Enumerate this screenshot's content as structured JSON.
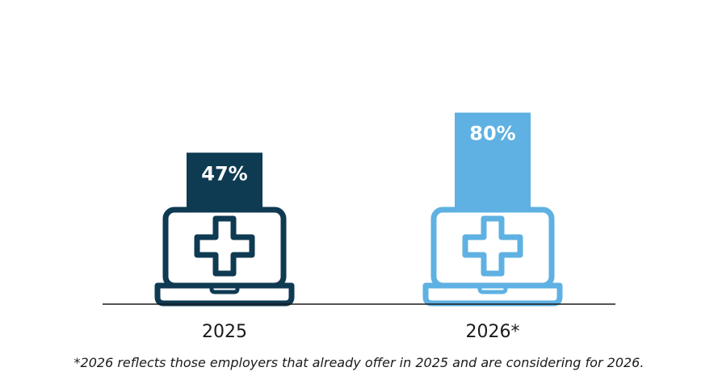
{
  "chart_data": {
    "type": "bar",
    "categories": [
      "2025",
      "2026*"
    ],
    "values": [
      47,
      80
    ],
    "value_labels": [
      "47%",
      "80%"
    ],
    "unit": "%",
    "ylim": [
      0,
      100
    ],
    "grid": false,
    "legend": "none",
    "icon": "laptop-medical-cross-icon"
  },
  "colors": {
    "bar_2025": "#0e3a52",
    "bar_2026": "#5eb1e2",
    "axis": "#1a1a1a",
    "label_text": "#ffffff",
    "category_text": "#1a1a1a"
  },
  "footnote": "*2026 reflects those employers that already offer in 2025 and are considering for 2026."
}
